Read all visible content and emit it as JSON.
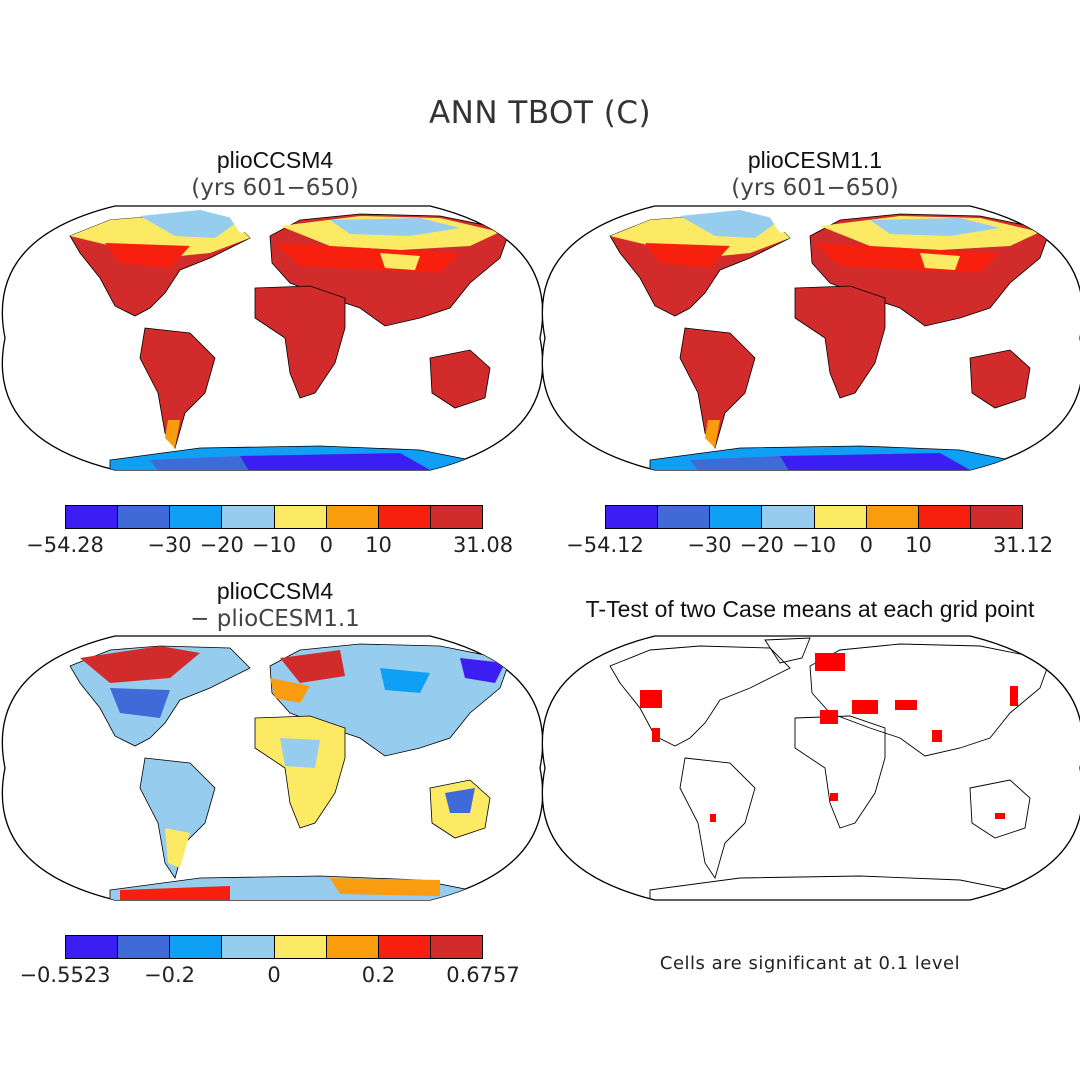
{
  "figure": {
    "title": "ANN TBOT (C)",
    "note": "Cells are significant at 0.1 level"
  },
  "panels": [
    {
      "title": "plioCCSM4",
      "subtitle": "(yrs 601−650)",
      "colorbar": {
        "colors": [
          "#3d1ef2",
          "#3f6ad8",
          "#0fa0f5",
          "#96ccee",
          "#fcea64",
          "#f99c0d",
          "#f7200e",
          "#d12b2b"
        ],
        "labels": [
          "−54.28",
          "−30",
          "−20",
          "−10",
          "0",
          "10",
          "31.08"
        ]
      }
    },
    {
      "title": "plioCESM1.1",
      "subtitle": "(yrs 601−650)",
      "colorbar": {
        "colors": [
          "#3d1ef2",
          "#3f6ad8",
          "#0fa0f5",
          "#96ccee",
          "#fcea64",
          "#f99c0d",
          "#f7200e",
          "#d12b2b"
        ],
        "labels": [
          "−54.12",
          "−30",
          "−20",
          "−10",
          "0",
          "10",
          "31.12"
        ]
      }
    },
    {
      "title": "plioCCSM4",
      "subtitle": "− plioCESM1.1",
      "colorbar": {
        "colors": [
          "#3d1ef2",
          "#3f6ad8",
          "#0fa0f5",
          "#96ccee",
          "#fcea64",
          "#f99c0d",
          "#f7200e",
          "#d12b2b"
        ],
        "labels": [
          "−0.5523",
          "−0.2",
          "0",
          "0.2",
          "0.6757"
        ]
      }
    },
    {
      "title": "T-Test of two Case means at each grid point",
      "significance_color": "#ff0000"
    }
  ]
}
